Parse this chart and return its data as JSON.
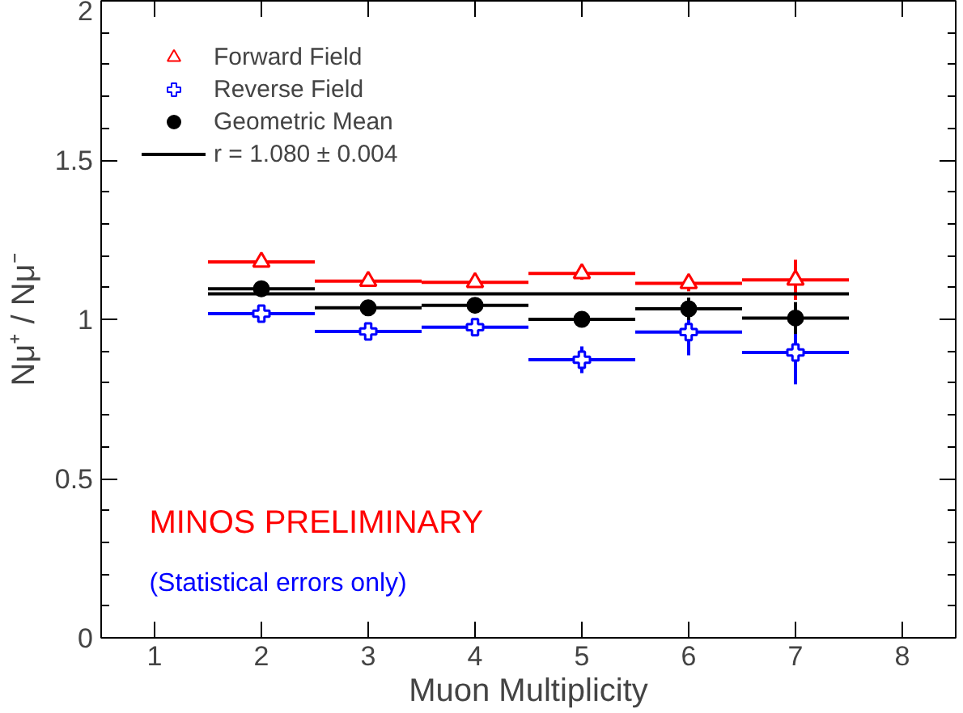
{
  "chart_data": {
    "type": "scatter",
    "xlabel": "Muon Multiplicity",
    "ylabel": "Nμ⁺ / Nμ⁻",
    "x": [
      2,
      3,
      4,
      5,
      6,
      7
    ],
    "series": [
      {
        "name": "Forward Field",
        "color": "#ff0000",
        "marker": "triangle",
        "values": [
          1.18,
          1.12,
          1.116,
          1.144,
          1.113,
          1.124
        ],
        "errors": [
          0.006,
          0.01,
          0.01,
          0.02,
          0.025,
          0.063
        ],
        "xerrors": [
          0.5,
          0.5,
          0.5,
          0.5,
          0.5,
          0.5
        ]
      },
      {
        "name": "Reverse Field",
        "color": "#0000ff",
        "marker": "cross",
        "values": [
          1.018,
          0.962,
          0.975,
          0.873,
          0.96,
          0.896
        ],
        "errors": [
          0.006,
          0.01,
          0.027,
          0.042,
          0.073,
          0.1
        ],
        "xerrors": [
          0.5,
          0.5,
          0.5,
          0.5,
          0.5,
          0.5
        ]
      },
      {
        "name": "Geometric Mean",
        "color": "#000000",
        "marker": "circle",
        "values": [
          1.096,
          1.036,
          1.044,
          1.0,
          1.033,
          1.004
        ],
        "errors": [
          0.01,
          0.01,
          0.01,
          0.02,
          0.035,
          0.05
        ],
        "xerrors": [
          0.5,
          0.5,
          0.5,
          0.5,
          0.5,
          0.5
        ]
      },
      {
        "name": "r = 1.080 ± 0.004",
        "type": "line",
        "color": "#000000",
        "x": [
          1.5,
          7.5
        ],
        "values": [
          1.08,
          1.08
        ]
      }
    ],
    "xlim": [
      0.5,
      8.5
    ],
    "ylim": [
      0,
      2
    ],
    "xticks": [
      1,
      2,
      3,
      4,
      5,
      6,
      7,
      8
    ],
    "yticks": [
      0,
      0.5,
      1,
      1.5,
      2
    ],
    "grid": false,
    "legend": "top left",
    "annotations": [
      "MINOS PRELIMINARY",
      "(Statistical errors only)"
    ]
  }
}
